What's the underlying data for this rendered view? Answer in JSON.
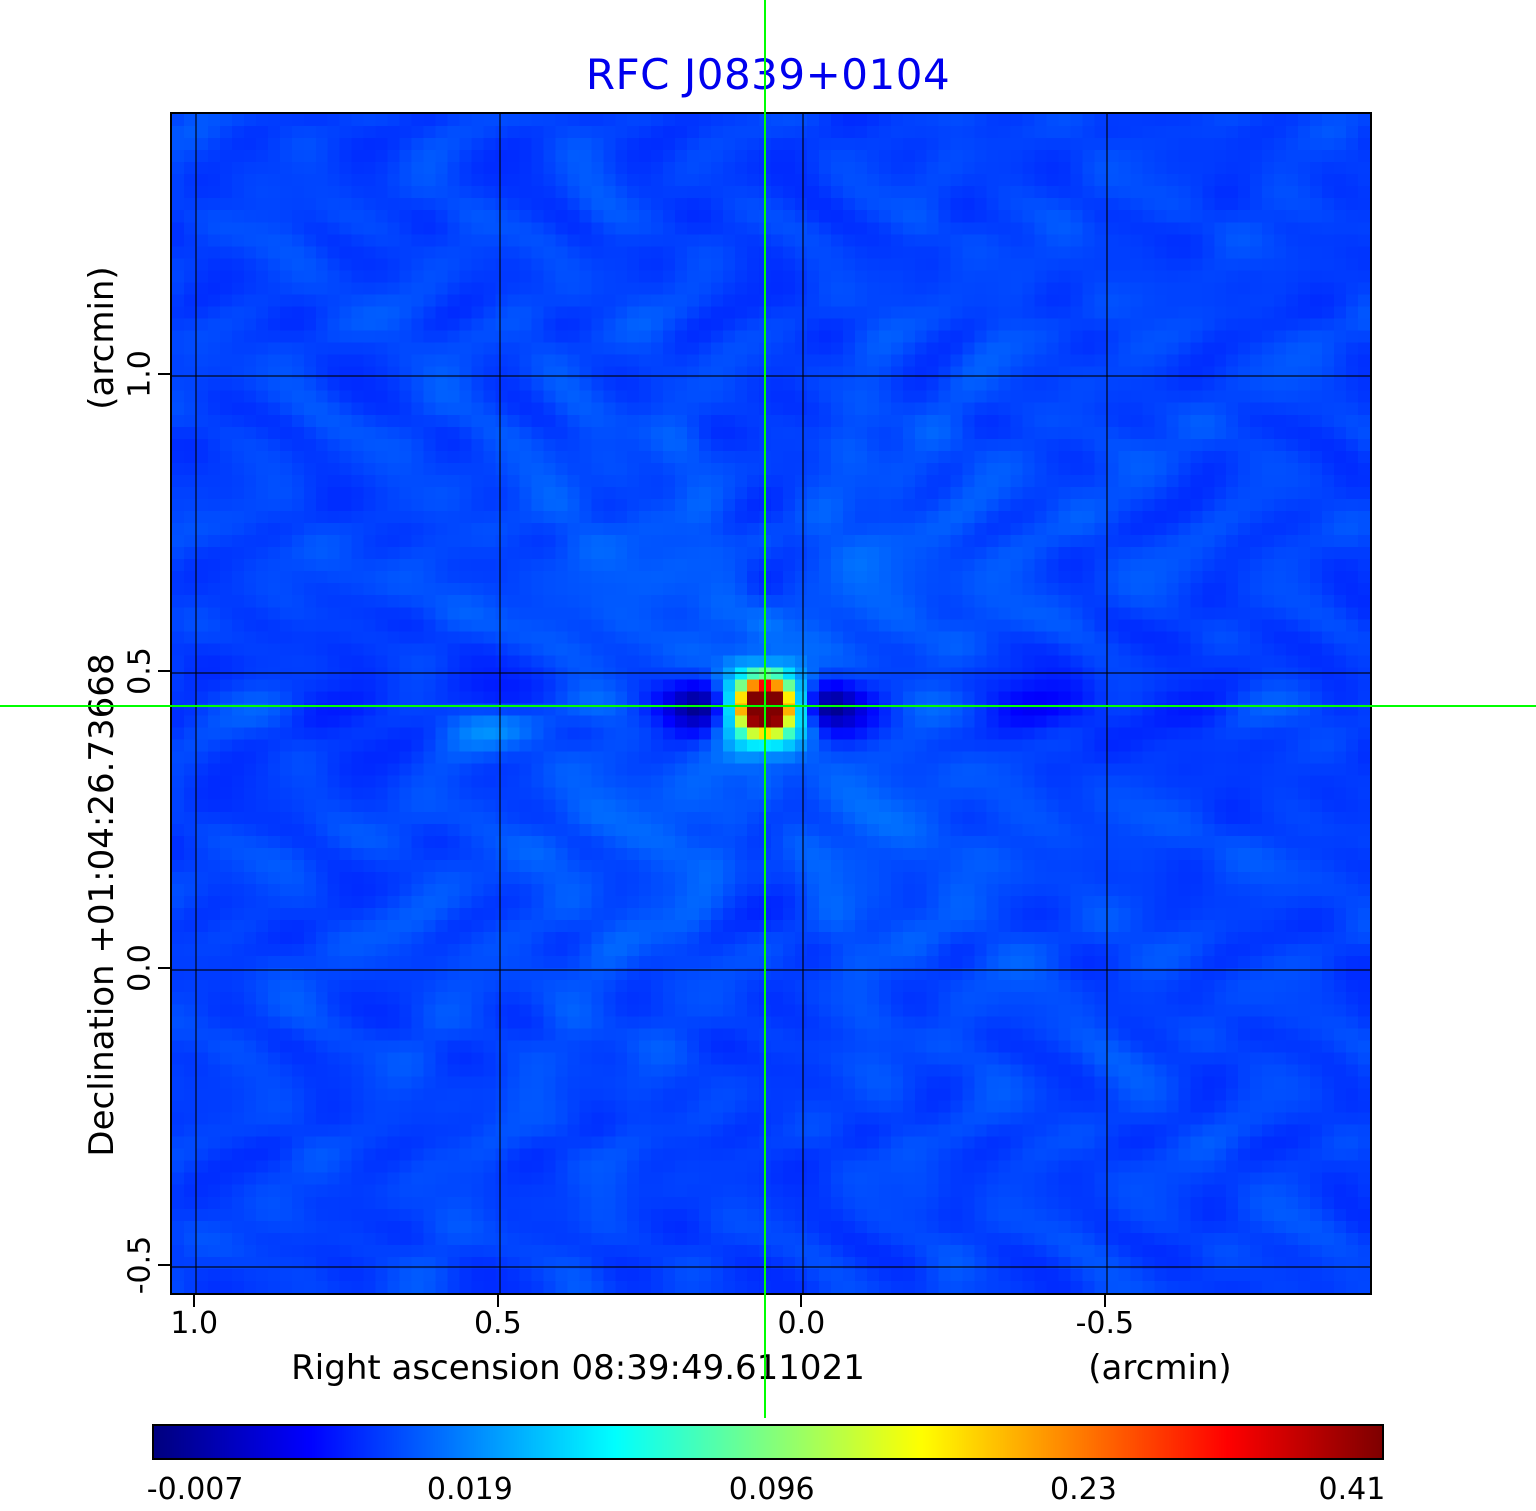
{
  "title": {
    "text": "RFC J0839+0104",
    "color": "#0000ee"
  },
  "axes": {
    "x": {
      "label": "Right ascension  08:39:49.611021",
      "unit": "(arcmin)",
      "range": [
        1.04,
        -0.94
      ],
      "ticks": [
        {
          "value": 1.0,
          "label": "1.0"
        },
        {
          "value": 0.5,
          "label": "0.5"
        },
        {
          "value": 0.0,
          "label": "0.0"
        },
        {
          "value": -0.5,
          "label": "-0.5"
        }
      ]
    },
    "y": {
      "label": "Declination  +01:04:26.73668",
      "unit": "(arcmin)",
      "range": [
        1.44,
        -0.55
      ],
      "ticks": [
        {
          "value": 1.0,
          "label": "1.0"
        },
        {
          "value": 0.5,
          "label": "0.5"
        },
        {
          "value": 0.0,
          "label": "0.0"
        },
        {
          "value": -0.5,
          "label": "-0.5"
        }
      ]
    }
  },
  "crosshair": {
    "x_arcmin": 0.06,
    "y_arcmin": 0.44,
    "color": "#00ff00"
  },
  "colorbar": {
    "colormap": "jet",
    "ticks": [
      {
        "label": "-0.007",
        "position": 0.035
      },
      {
        "label": "0.019",
        "position": 0.258
      },
      {
        "label": "0.096",
        "position": 0.503
      },
      {
        "label": "0.23",
        "position": 0.756
      },
      {
        "label": "0.41",
        "position": 0.974
      }
    ]
  },
  "chart_data": {
    "type": "heatmap",
    "title": "RFC J0839+0104",
    "xlabel": "Right ascension  08:39:49.611021 (arcmin)",
    "ylabel": "Declination  +01:04:26.73668 (arcmin)",
    "x_range_arcmin": [
      1.04,
      -0.94
    ],
    "y_range_arcmin": [
      1.44,
      -0.55
    ],
    "x_ticks": [
      1.0,
      0.5,
      0.0,
      -0.5
    ],
    "y_ticks": [
      1.0,
      0.5,
      0.0,
      -0.5
    ],
    "grid": true,
    "colormap": "jet",
    "colorbar_values": [
      -0.007,
      0.019,
      0.096,
      0.23,
      0.41
    ],
    "peak_source": {
      "x_arcmin": 0.06,
      "y_arcmin": 0.44,
      "peak_value": 0.41
    },
    "background_value": 0.0,
    "description": "VLBI radio continuum map: single compact bright source at the green crosshair, horizontal sidelobe stripe through the source row, faint radial ray artifacts over a uniform blue background"
  }
}
